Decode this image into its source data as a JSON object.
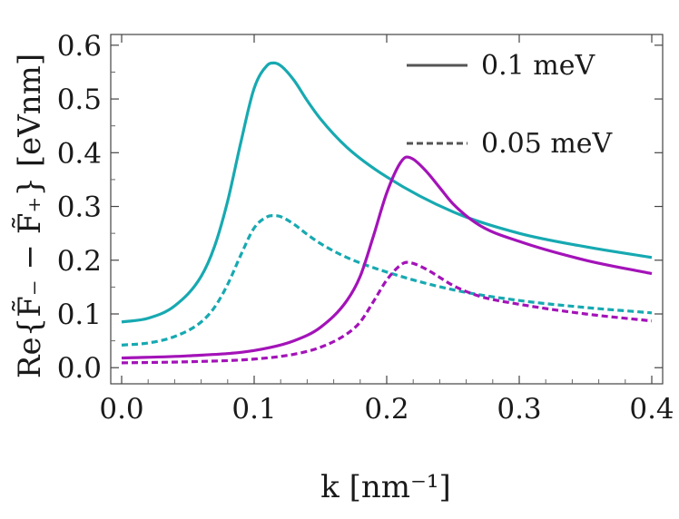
{
  "chart_data": {
    "type": "line",
    "title": "",
    "xlabel": "k [nm⁻¹]",
    "ylabel": "Re{F̃₋ − F̃₊} [eVnm]",
    "xlim": [
      0.0,
      0.4
    ],
    "ylim": [
      -0.03,
      0.62
    ],
    "xticks": [
      0.0,
      0.1,
      0.2,
      0.3,
      0.4
    ],
    "xtick_labels": [
      "0.0",
      "0.1",
      "0.2",
      "0.3",
      "0.4"
    ],
    "yticks": [
      0.0,
      0.1,
      0.2,
      0.3,
      0.4,
      0.5,
      0.6
    ],
    "ytick_labels": [
      "0.0",
      "0.1",
      "0.2",
      "0.3",
      "0.4",
      "0.5",
      "0.6"
    ],
    "grid": false,
    "legend_position": "top-right",
    "legend": [
      {
        "label": "0.1 meV",
        "style": "solid",
        "color": "#555555"
      },
      {
        "label": "0.05 meV",
        "style": "dashed",
        "color": "#555555"
      }
    ],
    "series": [
      {
        "name": "cyan 0.1 meV",
        "color": "#17a9b1",
        "style": "solid",
        "x": [
          0.0,
          0.02,
          0.04,
          0.06,
          0.07,
          0.08,
          0.09,
          0.1,
          0.11,
          0.115,
          0.12,
          0.13,
          0.14,
          0.15,
          0.17,
          0.2,
          0.25,
          0.3,
          0.35,
          0.4
        ],
        "y": [
          0.085,
          0.092,
          0.115,
          0.17,
          0.225,
          0.31,
          0.42,
          0.52,
          0.563,
          0.567,
          0.562,
          0.535,
          0.497,
          0.463,
          0.41,
          0.355,
          0.29,
          0.25,
          0.225,
          0.205
        ]
      },
      {
        "name": "cyan 0.05 meV",
        "color": "#17a9b1",
        "style": "dashed",
        "x": [
          0.0,
          0.02,
          0.04,
          0.06,
          0.07,
          0.08,
          0.09,
          0.1,
          0.11,
          0.115,
          0.12,
          0.13,
          0.14,
          0.15,
          0.17,
          0.2,
          0.25,
          0.3,
          0.35,
          0.4
        ],
        "y": [
          0.042,
          0.046,
          0.058,
          0.085,
          0.112,
          0.155,
          0.21,
          0.26,
          0.281,
          0.283,
          0.281,
          0.267,
          0.248,
          0.231,
          0.205,
          0.178,
          0.145,
          0.125,
          0.112,
          0.102
        ]
      },
      {
        "name": "magenta 0.1 meV",
        "color": "#a313b8",
        "style": "solid",
        "x": [
          0.0,
          0.05,
          0.1,
          0.13,
          0.15,
          0.17,
          0.18,
          0.19,
          0.2,
          0.21,
          0.215,
          0.22,
          0.23,
          0.24,
          0.25,
          0.27,
          0.3,
          0.35,
          0.4
        ],
        "y": [
          0.018,
          0.022,
          0.032,
          0.05,
          0.075,
          0.125,
          0.17,
          0.245,
          0.325,
          0.38,
          0.392,
          0.388,
          0.365,
          0.335,
          0.305,
          0.265,
          0.235,
          0.2,
          0.175
        ]
      },
      {
        "name": "magenta 0.05 meV",
        "color": "#a313b8",
        "style": "dashed",
        "x": [
          0.0,
          0.05,
          0.1,
          0.13,
          0.15,
          0.17,
          0.18,
          0.19,
          0.2,
          0.21,
          0.215,
          0.22,
          0.23,
          0.24,
          0.25,
          0.27,
          0.3,
          0.35,
          0.4
        ],
        "y": [
          0.009,
          0.011,
          0.016,
          0.025,
          0.038,
          0.063,
          0.085,
          0.123,
          0.163,
          0.19,
          0.196,
          0.194,
          0.183,
          0.168,
          0.153,
          0.133,
          0.118,
          0.1,
          0.087
        ]
      }
    ]
  }
}
